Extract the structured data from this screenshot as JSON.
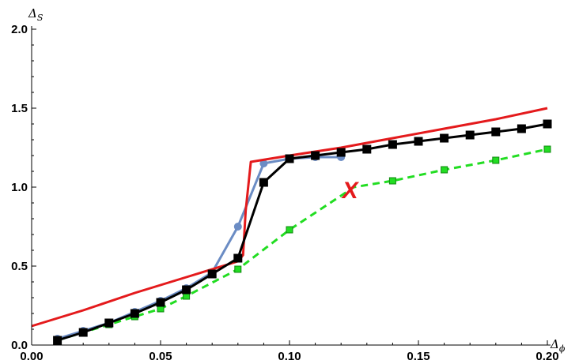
{
  "chart_data": {
    "type": "line",
    "title": "",
    "xlabel": "Δ",
    "xlabel_sub": "ϕ",
    "ylabel": "Δ",
    "ylabel_sub": "S",
    "xlim": [
      0,
      0.2
    ],
    "ylim": [
      0,
      2.0
    ],
    "x_ticks": [
      0,
      0.05,
      0.1,
      0.15,
      0.2
    ],
    "x_tick_labels": [
      "0.00",
      "0.05",
      "0.10",
      "0.15",
      "0.20"
    ],
    "y_ticks": [
      0,
      0.5,
      1.0,
      1.5,
      2.0
    ],
    "y_tick_labels": [
      "0.0",
      "0.5",
      "1.0",
      "1.5",
      "2.0"
    ],
    "grid": false,
    "series": [
      {
        "color": "#e41a1c",
        "style": "solid",
        "marker": "none",
        "x": [
          0,
          0.02,
          0.04,
          0.06,
          0.08,
          0.081,
          0.082,
          0.083,
          0.085,
          0.1,
          0.12,
          0.14,
          0.16,
          0.18,
          0.2
        ],
        "y": [
          0.12,
          0.22,
          0.33,
          0.43,
          0.53,
          0.55,
          0.57,
          0.85,
          1.16,
          1.2,
          1.25,
          1.31,
          1.37,
          1.43,
          1.5
        ]
      },
      {
        "color": "#6b8cc4",
        "style": "solid",
        "marker": "circle",
        "x": [
          0.01,
          0.02,
          0.03,
          0.04,
          0.05,
          0.06,
          0.07,
          0.08,
          0.09,
          0.1,
          0.11,
          0.12
        ],
        "y": [
          0.04,
          0.09,
          0.14,
          0.21,
          0.28,
          0.36,
          0.46,
          0.75,
          1.15,
          1.18,
          1.19,
          1.19
        ]
      },
      {
        "color": "#000000",
        "style": "solid",
        "marker": "square",
        "x": [
          0.01,
          0.02,
          0.03,
          0.04,
          0.05,
          0.06,
          0.07,
          0.08,
          0.09,
          0.1,
          0.11,
          0.12,
          0.13,
          0.14,
          0.15,
          0.16,
          0.17,
          0.18,
          0.19,
          0.2
        ],
        "y": [
          0.03,
          0.08,
          0.14,
          0.2,
          0.27,
          0.35,
          0.45,
          0.55,
          1.03,
          1.18,
          1.2,
          1.22,
          1.24,
          1.27,
          1.29,
          1.31,
          1.33,
          1.35,
          1.37,
          1.4
        ]
      },
      {
        "color": "#22dd22",
        "style": "dashed",
        "marker": "square",
        "x": [
          0.01,
          0.02,
          0.03,
          0.04,
          0.05,
          0.06,
          0.08,
          0.1,
          0.14,
          0.16,
          0.18,
          0.2
        ],
        "y": [
          0.03,
          0.08,
          0.13,
          0.18,
          0.23,
          0.31,
          0.48,
          0.73,
          1.04,
          1.11,
          1.17,
          1.24
        ]
      }
    ],
    "line_only_points": {
      "series_index": 3,
      "x": [
        0.125
      ],
      "y": [
        1.0
      ]
    },
    "annotations": [
      {
        "text": "X",
        "x": 0.1235,
        "y": 0.98,
        "color": "#e41a1c"
      }
    ]
  }
}
